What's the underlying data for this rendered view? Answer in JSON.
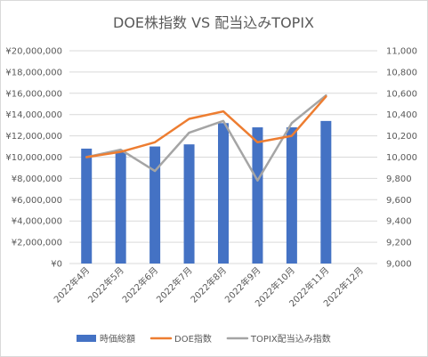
{
  "chart_data": {
    "type": "bar+line",
    "title": "DOE株指数 VS 配当込みTOPIX",
    "categories": [
      "2022年4月",
      "2022年5月",
      "2022年6月",
      "2022年7月",
      "2022年8月",
      "2022年9月",
      "2022年10月",
      "2022年11月",
      "2022年12月"
    ],
    "y_left": {
      "ylim": [
        0,
        20000000
      ],
      "ticks": [
        "¥0",
        "¥2,000,000",
        "¥4,000,000",
        "¥6,000,000",
        "¥8,000,000",
        "¥10,000,000",
        "¥12,000,000",
        "¥14,000,000",
        "¥16,000,000",
        "¥18,000,000",
        "¥20,000,000"
      ]
    },
    "y_right": {
      "ylim": [
        9000,
        11000
      ],
      "ticks": [
        "9,000",
        "9,200",
        "9,400",
        "9,600",
        "9,800",
        "10,000",
        "10,200",
        "10,400",
        "10,600",
        "10,800",
        "11,000"
      ]
    },
    "series": [
      {
        "name": "時価総額",
        "type": "bar",
        "axis": "left",
        "color": "#4472C4",
        "values": [
          10800000,
          10600000,
          11000000,
          11200000,
          13200000,
          12800000,
          12800000,
          13400000,
          null
        ]
      },
      {
        "name": "DOE指数",
        "type": "line",
        "axis": "right",
        "color": "#ED7D31",
        "values": [
          10000,
          10050,
          10140,
          10360,
          10430,
          10140,
          10200,
          10570,
          null
        ]
      },
      {
        "name": "TOPIX配当込み指数",
        "type": "line",
        "axis": "right",
        "color": "#A5A5A5",
        "values": [
          10000,
          10070,
          9870,
          10230,
          10340,
          9780,
          10320,
          10580,
          null
        ]
      }
    ],
    "legend_position": "bottom",
    "grid": true
  }
}
